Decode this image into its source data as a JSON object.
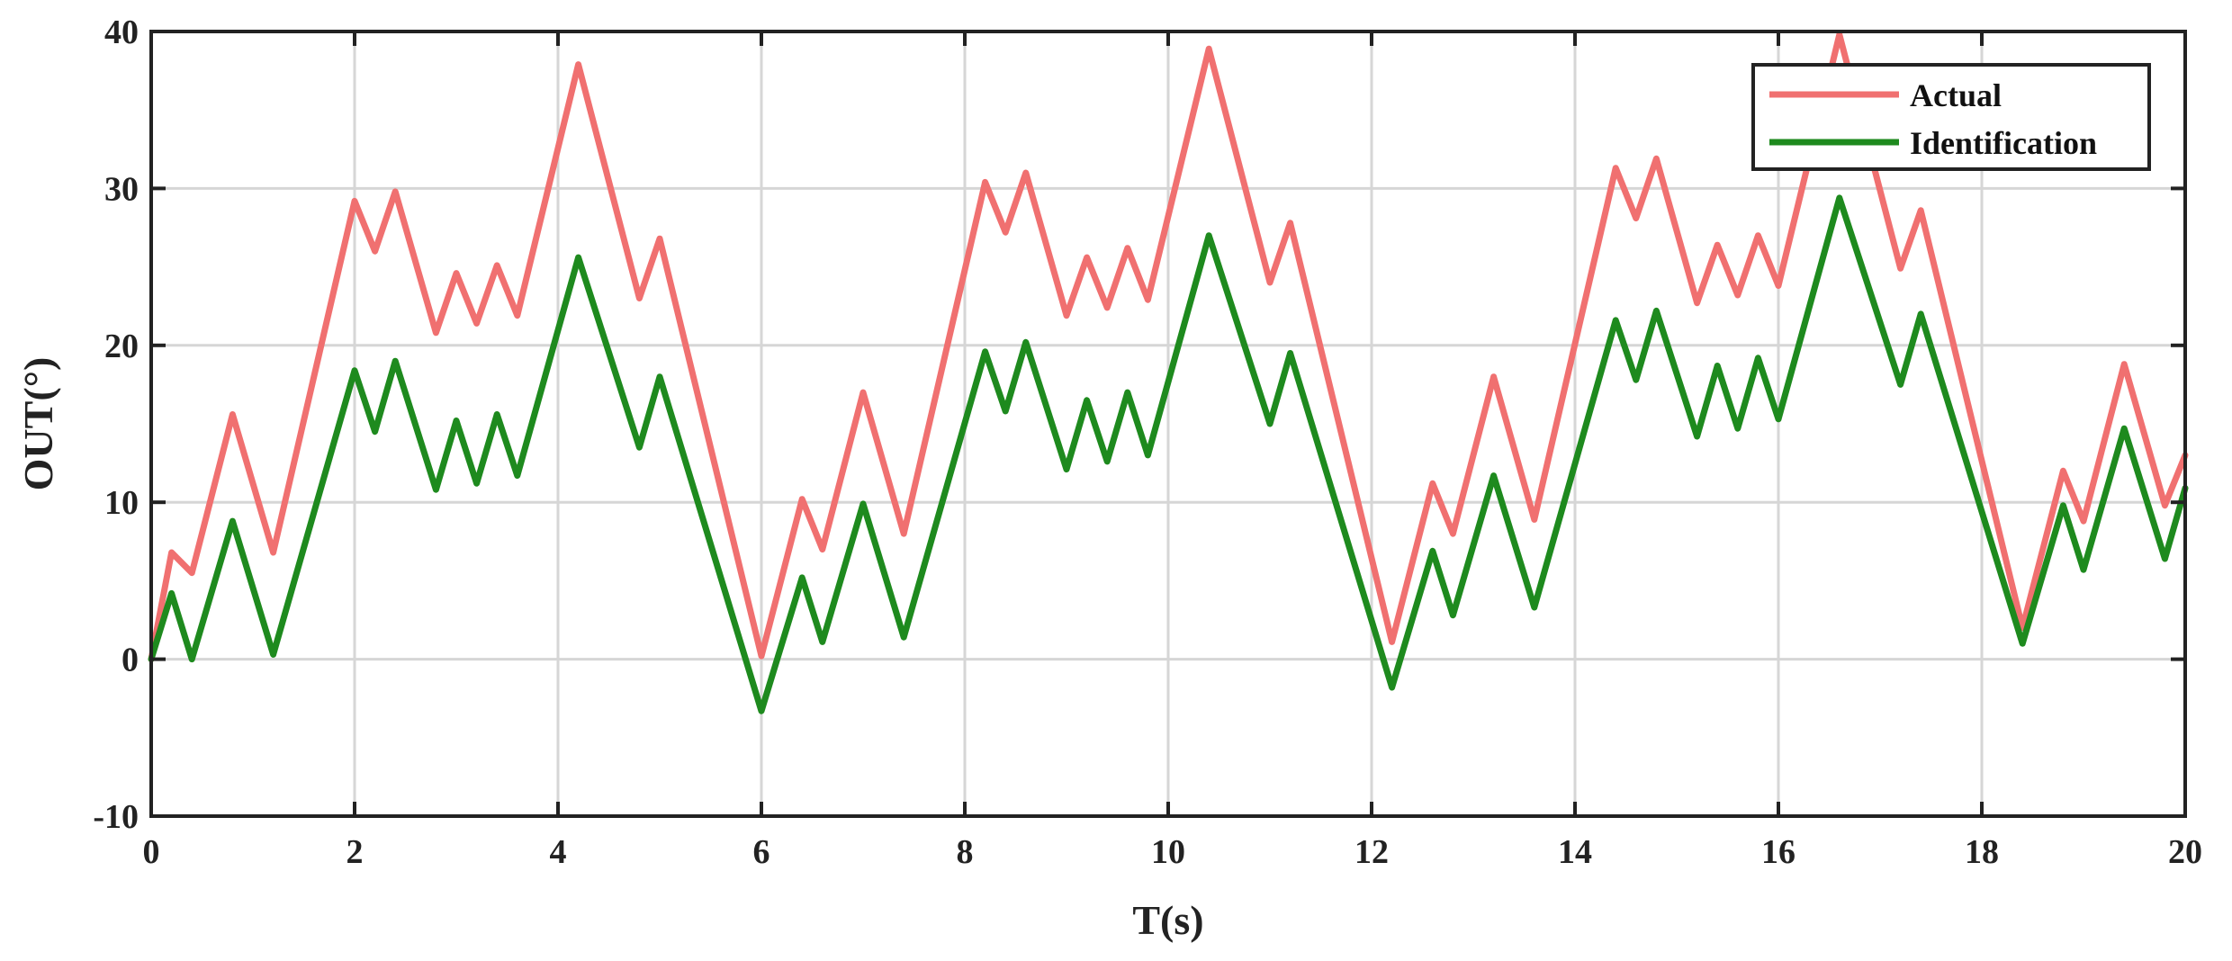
{
  "chart_data": {
    "type": "line",
    "xlabel": "T(s)",
    "ylabel": "OUT(°)",
    "xlim": [
      0,
      20
    ],
    "ylim": [
      -10,
      40
    ],
    "x_ticks": [
      0,
      2,
      4,
      6,
      8,
      10,
      12,
      14,
      16,
      18,
      20
    ],
    "y_ticks": [
      -10,
      0,
      10,
      20,
      30,
      40
    ],
    "x_tick_labels": [
      "0",
      "2",
      "4",
      "6",
      "8",
      "10",
      "12",
      "14",
      "16",
      "18",
      "20"
    ],
    "y_tick_labels": [
      "-10",
      "0",
      "10",
      "20",
      "30",
      "40"
    ],
    "grid": true,
    "legend_position": "top-right",
    "series": [
      {
        "name": "Actual",
        "color": "#f07070",
        "x": [
          0,
          0.2,
          0.4,
          0.8,
          1.2,
          2.0,
          2.2,
          2.4,
          2.8,
          3.0,
          3.2,
          3.4,
          3.6,
          4.2,
          4.8,
          5.0,
          6.0,
          6.4,
          6.6,
          7.0,
          7.4,
          8.2,
          8.4,
          8.6,
          9.0,
          9.2,
          9.4,
          9.6,
          9.8,
          10.4,
          11.0,
          11.2,
          12.2,
          12.6,
          12.8,
          13.2,
          13.6,
          14.4,
          14.6,
          14.8,
          15.2,
          15.4,
          15.6,
          15.8,
          16.0,
          16.6,
          17.2,
          17.4,
          18.4,
          18.8,
          19.0,
          19.4,
          19.8,
          20.0
        ],
        "values": [
          0,
          6.8,
          5.5,
          15.6,
          6.8,
          29.2,
          26.0,
          29.8,
          20.8,
          24.6,
          21.4,
          25.1,
          21.9,
          37.9,
          23.0,
          26.8,
          0.2,
          10.2,
          7.0,
          17.0,
          8.0,
          30.4,
          27.2,
          31.0,
          21.9,
          25.6,
          22.4,
          26.2,
          22.9,
          38.9,
          24.0,
          27.8,
          1.1,
          11.2,
          8.0,
          18.0,
          8.9,
          31.3,
          28.1,
          31.9,
          22.7,
          26.4,
          23.2,
          27.0,
          23.8,
          39.8,
          24.9,
          28.6,
          2.0,
          12.0,
          8.8,
          18.8,
          9.8,
          13.0
        ]
      },
      {
        "name": "Identification",
        "color": "#1e8a1e",
        "x": [
          0,
          0.2,
          0.4,
          0.8,
          1.2,
          2.0,
          2.2,
          2.4,
          2.8,
          3.0,
          3.2,
          3.4,
          3.6,
          4.2,
          4.8,
          5.0,
          6.0,
          6.4,
          6.6,
          7.0,
          7.4,
          8.2,
          8.4,
          8.6,
          9.0,
          9.2,
          9.4,
          9.6,
          9.8,
          10.4,
          11.0,
          11.2,
          12.2,
          12.6,
          12.8,
          13.2,
          13.6,
          14.4,
          14.6,
          14.8,
          15.2,
          15.4,
          15.6,
          15.8,
          16.0,
          16.6,
          17.2,
          17.4,
          18.4,
          18.8,
          19.0,
          19.4,
          19.8,
          20.0
        ],
        "values": [
          0,
          4.2,
          0,
          8.8,
          0.3,
          18.4,
          14.5,
          19.0,
          10.8,
          15.2,
          11.2,
          15.6,
          11.7,
          25.6,
          13.5,
          18.0,
          -3.3,
          5.2,
          1.1,
          9.9,
          1.4,
          19.6,
          15.8,
          20.2,
          12.1,
          16.5,
          12.6,
          17.0,
          13.0,
          27.0,
          15.0,
          19.5,
          -1.8,
          6.9,
          2.8,
          11.7,
          3.3,
          21.6,
          17.8,
          22.2,
          14.2,
          18.7,
          14.7,
          19.2,
          15.3,
          29.4,
          17.5,
          22.0,
          1.0,
          9.8,
          5.7,
          14.7,
          6.4,
          10.9
        ]
      }
    ]
  }
}
